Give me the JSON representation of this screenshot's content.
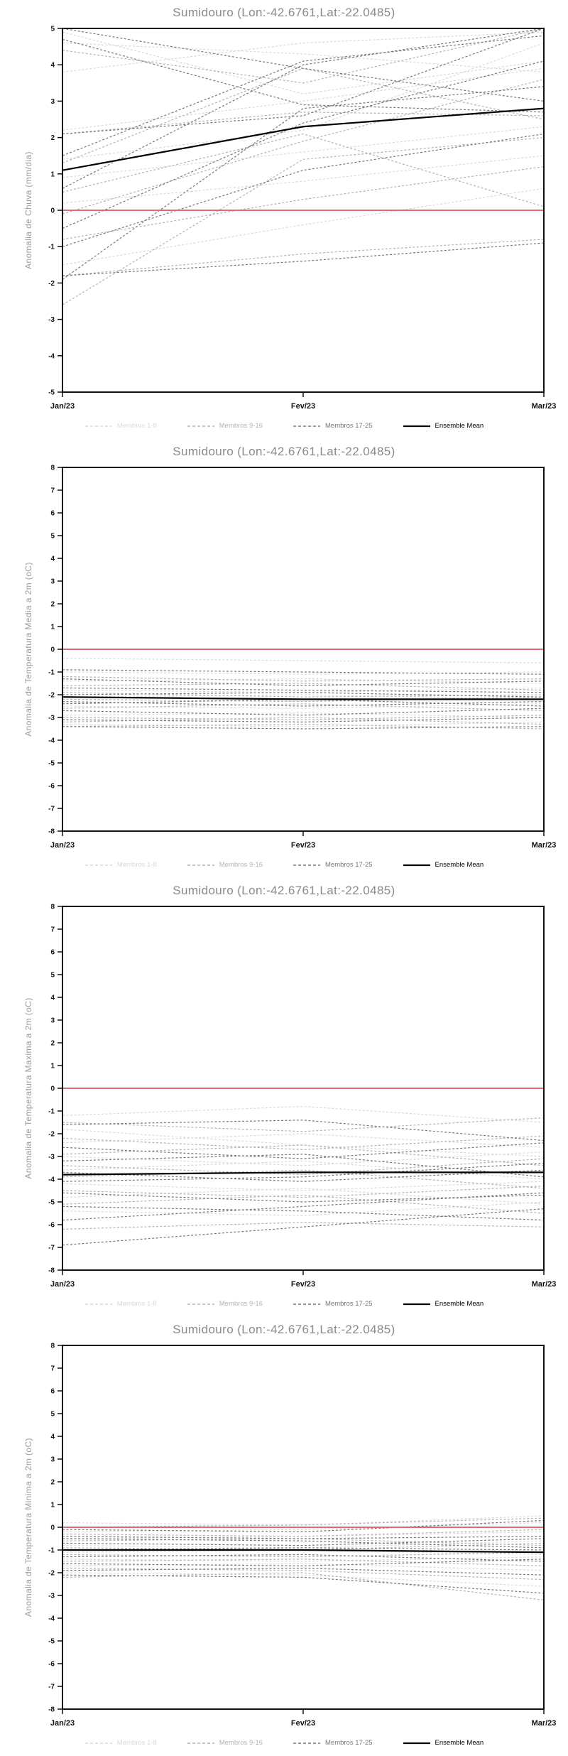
{
  "page": {
    "background": "#ffffff"
  },
  "chart_data": [
    {
      "type": "line",
      "title": "Sumidouro (Lon:-42.6761,Lat:-22.0485)",
      "ylabel": "Anomalia de Chuva (mm/dia)",
      "xlabel": "",
      "ylim": [
        -5,
        5
      ],
      "ytick_step": 1,
      "x": [
        "Jan/23",
        "Fev/23",
        "Mar/23"
      ],
      "grid": false,
      "legend_position": "bottom",
      "zero_line": {
        "y": 0,
        "color": "#e06a6a"
      },
      "legend": [
        {
          "label": "Membros 1-8",
          "color": "#d9d9d9",
          "style": "dashed"
        },
        {
          "label": "Membros 9-16",
          "color": "#b3b3b3",
          "style": "dashed"
        },
        {
          "label": "Membros 17-25",
          "color": "#777777",
          "style": "dashed"
        },
        {
          "label": "Ensemble Mean",
          "color": "#000000",
          "style": "solid"
        }
      ],
      "series": [
        {
          "group": 0,
          "values": [
            4.9,
            3.2,
            4.1
          ]
        },
        {
          "group": 0,
          "values": [
            4.6,
            4.3,
            3.8
          ]
        },
        {
          "group": 0,
          "values": [
            3.8,
            4.6,
            4.9
          ]
        },
        {
          "group": 0,
          "values": [
            2.2,
            3.0,
            3.9
          ]
        },
        {
          "group": 0,
          "values": [
            1.4,
            2.2,
            4.6
          ]
        },
        {
          "group": 0,
          "values": [
            0.9,
            1.6,
            2.3
          ]
        },
        {
          "group": 0,
          "values": [
            0.2,
            0.8,
            1.5
          ]
        },
        {
          "group": 0,
          "values": [
            -1.5,
            -0.4,
            0.6
          ]
        },
        {
          "group": 1,
          "values": [
            4.4,
            3.5,
            5.0
          ]
        },
        {
          "group": 1,
          "values": [
            2.1,
            2.7,
            2.6
          ]
        },
        {
          "group": 1,
          "values": [
            1.3,
            3.9,
            2.5
          ]
        },
        {
          "group": 1,
          "values": [
            0.5,
            2.1,
            0.1
          ]
        },
        {
          "group": 1,
          "values": [
            -0.1,
            1.9,
            3.6
          ]
        },
        {
          "group": 1,
          "values": [
            -0.8,
            0.3,
            1.2
          ]
        },
        {
          "group": 1,
          "values": [
            -1.8,
            -1.2,
            -0.8
          ]
        },
        {
          "group": 1,
          "values": [
            -2.6,
            1.4,
            2.0
          ]
        },
        {
          "group": 2,
          "values": [
            5.0,
            3.9,
            3.0
          ]
        },
        {
          "group": 2,
          "values": [
            4.7,
            2.9,
            2.7
          ]
        },
        {
          "group": 2,
          "values": [
            2.1,
            2.6,
            5.0
          ]
        },
        {
          "group": 2,
          "values": [
            1.5,
            4.1,
            4.8
          ]
        },
        {
          "group": 2,
          "values": [
            0.6,
            4.0,
            5.0
          ]
        },
        {
          "group": 2,
          "values": [
            -0.5,
            2.4,
            4.1
          ]
        },
        {
          "group": 2,
          "values": [
            -1.0,
            1.1,
            2.1
          ]
        },
        {
          "group": 2,
          "values": [
            -1.9,
            2.8,
            3.4
          ]
        },
        {
          "group": 2,
          "values": [
            -1.8,
            -1.4,
            -0.9
          ]
        },
        {
          "group": 3,
          "values": [
            1.1,
            2.3,
            2.8
          ]
        }
      ]
    },
    {
      "type": "line",
      "title": "Sumidouro (Lon:-42.6761,Lat:-22.0485)",
      "ylabel": "Anomalia de Temperatura Media a 2m (oC)",
      "xlabel": "",
      "ylim": [
        -8,
        8
      ],
      "ytick_step": 1,
      "x": [
        "Jan/23",
        "Fev/23",
        "Mar/23"
      ],
      "grid": false,
      "legend_position": "bottom",
      "zero_line": {
        "y": 0,
        "color": "#e06a6a"
      },
      "legend": [
        {
          "label": "Membros 1-8",
          "color": "#d9d9d9",
          "style": "dashed"
        },
        {
          "label": "Membros 9-16",
          "color": "#b3b3b3",
          "style": "dashed"
        },
        {
          "label": "Membros 17-25",
          "color": "#777777",
          "style": "dashed"
        },
        {
          "label": "Ensemble Mean",
          "color": "#000000",
          "style": "solid"
        }
      ],
      "series": [
        {
          "group": 0,
          "values": [
            -0.4,
            -0.5,
            -0.6
          ]
        },
        {
          "group": 0,
          "values": [
            -1.0,
            -1.1,
            -1.0
          ]
        },
        {
          "group": 0,
          "values": [
            -1.4,
            -1.3,
            -1.5
          ]
        },
        {
          "group": 0,
          "values": [
            -1.8,
            -1.9,
            -1.7
          ]
        },
        {
          "group": 0,
          "values": [
            -2.1,
            -2.0,
            -2.2
          ]
        },
        {
          "group": 0,
          "values": [
            -2.5,
            -2.6,
            -2.4
          ]
        },
        {
          "group": 0,
          "values": [
            -2.9,
            -2.8,
            -3.0
          ]
        },
        {
          "group": 0,
          "values": [
            -3.3,
            -3.4,
            -3.2
          ]
        },
        {
          "group": 1,
          "values": [
            -1.2,
            -1.4,
            -1.3
          ]
        },
        {
          "group": 1,
          "values": [
            -1.6,
            -1.5,
            -1.8
          ]
        },
        {
          "group": 1,
          "values": [
            -1.9,
            -2.1,
            -2.0
          ]
        },
        {
          "group": 1,
          "values": [
            -2.2,
            -2.3,
            -2.1
          ]
        },
        {
          "group": 1,
          "values": [
            -2.6,
            -2.4,
            -2.7
          ]
        },
        {
          "group": 1,
          "values": [
            -3.0,
            -3.1,
            -2.9
          ]
        },
        {
          "group": 1,
          "values": [
            -3.2,
            -3.0,
            -3.3
          ]
        },
        {
          "group": 1,
          "values": [
            -3.4,
            -3.3,
            -3.5
          ]
        },
        {
          "group": 2,
          "values": [
            -0.9,
            -1.0,
            -1.1
          ]
        },
        {
          "group": 2,
          "values": [
            -1.3,
            -1.6,
            -1.4
          ]
        },
        {
          "group": 2,
          "values": [
            -1.7,
            -1.8,
            -1.9
          ]
        },
        {
          "group": 2,
          "values": [
            -2.0,
            -1.9,
            -2.1
          ]
        },
        {
          "group": 2,
          "values": [
            -2.3,
            -2.5,
            -2.3
          ]
        },
        {
          "group": 2,
          "values": [
            -2.7,
            -2.9,
            -2.6
          ]
        },
        {
          "group": 2,
          "values": [
            -3.1,
            -3.2,
            -3.0
          ]
        },
        {
          "group": 2,
          "values": [
            -3.4,
            -3.5,
            -3.4
          ]
        },
        {
          "group": 2,
          "values": [
            -2.4,
            -2.2,
            -2.5
          ]
        },
        {
          "group": 3,
          "values": [
            -2.1,
            -2.2,
            -2.2
          ]
        }
      ]
    },
    {
      "type": "line",
      "title": "Sumidouro (Lon:-42.6761,Lat:-22.0485)",
      "ylabel": "Anomalia de Temperatura Maxima a 2m (oC)",
      "xlabel": "",
      "ylim": [
        -8,
        8
      ],
      "ytick_step": 1,
      "x": [
        "Jan/23",
        "Fev/23",
        "Mar/23"
      ],
      "grid": false,
      "legend_position": "bottom",
      "zero_line": {
        "y": 0,
        "color": "#e06a6a"
      },
      "legend": [
        {
          "label": "Membros 1-8",
          "color": "#d9d9d9",
          "style": "dashed"
        },
        {
          "label": "Membros 9-16",
          "color": "#b3b3b3",
          "style": "dashed"
        },
        {
          "label": "Membros 17-25",
          "color": "#777777",
          "style": "dashed"
        },
        {
          "label": "Ensemble Mean",
          "color": "#000000",
          "style": "solid"
        }
      ],
      "series": [
        {
          "group": 0,
          "values": [
            -1.2,
            -0.8,
            -1.5
          ]
        },
        {
          "group": 0,
          "values": [
            -1.8,
            -2.5,
            -3.0
          ]
        },
        {
          "group": 0,
          "values": [
            -2.4,
            -2.0,
            -2.6
          ]
        },
        {
          "group": 0,
          "values": [
            -3.0,
            -3.4,
            -2.8
          ]
        },
        {
          "group": 0,
          "values": [
            -3.6,
            -3.2,
            -4.0
          ]
        },
        {
          "group": 0,
          "values": [
            -4.2,
            -4.5,
            -4.1
          ]
        },
        {
          "group": 0,
          "values": [
            -4.8,
            -4.4,
            -5.1
          ]
        },
        {
          "group": 0,
          "values": [
            -5.4,
            -5.6,
            -5.0
          ]
        },
        {
          "group": 1,
          "values": [
            -1.5,
            -1.9,
            -1.3
          ]
        },
        {
          "group": 1,
          "values": [
            -2.2,
            -2.7,
            -2.1
          ]
        },
        {
          "group": 1,
          "values": [
            -2.9,
            -2.5,
            -3.4
          ]
        },
        {
          "group": 1,
          "values": [
            -3.4,
            -3.8,
            -3.1
          ]
        },
        {
          "group": 1,
          "values": [
            -3.9,
            -3.6,
            -4.4
          ]
        },
        {
          "group": 1,
          "values": [
            -4.5,
            -4.8,
            -4.3
          ]
        },
        {
          "group": 1,
          "values": [
            -5.1,
            -4.7,
            -5.5
          ]
        },
        {
          "group": 1,
          "values": [
            -6.2,
            -5.9,
            -6.1
          ]
        },
        {
          "group": 2,
          "values": [
            -1.6,
            -1.4,
            -2.3
          ]
        },
        {
          "group": 2,
          "values": [
            -2.6,
            -3.1,
            -2.4
          ]
        },
        {
          "group": 2,
          "values": [
            -3.2,
            -2.9,
            -3.9
          ]
        },
        {
          "group": 2,
          "values": [
            -3.7,
            -4.1,
            -3.6
          ]
        },
        {
          "group": 2,
          "values": [
            -4.1,
            -3.9,
            -3.3
          ]
        },
        {
          "group": 2,
          "values": [
            -4.6,
            -5.0,
            -4.7
          ]
        },
        {
          "group": 2,
          "values": [
            -5.2,
            -5.4,
            -5.8
          ]
        },
        {
          "group": 2,
          "values": [
            -5.8,
            -5.2,
            -4.6
          ]
        },
        {
          "group": 2,
          "values": [
            -6.9,
            -6.1,
            -5.3
          ]
        },
        {
          "group": 3,
          "values": [
            -3.8,
            -3.7,
            -3.7
          ]
        }
      ]
    },
    {
      "type": "line",
      "title": "Sumidouro (Lon:-42.6761,Lat:-22.0485)",
      "ylabel": "Anomalia de Temperatura Minima a 2m (oC)",
      "xlabel": "",
      "ylim": [
        -8,
        8
      ],
      "ytick_step": 1,
      "x": [
        "Jan/23",
        "Fev/23",
        "Mar/23"
      ],
      "grid": false,
      "legend_position": "bottom",
      "zero_line": {
        "y": 0,
        "color": "#e06a6a"
      },
      "legend": [
        {
          "label": "Membros 1-8",
          "color": "#d9d9d9",
          "style": "dashed"
        },
        {
          "label": "Membros 9-16",
          "color": "#b3b3b3",
          "style": "dashed"
        },
        {
          "label": "Membros 17-25",
          "color": "#777777",
          "style": "dashed"
        },
        {
          "label": "Ensemble Mean",
          "color": "#000000",
          "style": "solid"
        }
      ],
      "series": [
        {
          "group": 0,
          "values": [
            0.2,
            0.1,
            0.5
          ]
        },
        {
          "group": 0,
          "values": [
            -0.2,
            -0.1,
            0.2
          ]
        },
        {
          "group": 0,
          "values": [
            -0.5,
            -0.4,
            -0.2
          ]
        },
        {
          "group": 0,
          "values": [
            -0.8,
            -0.9,
            -0.6
          ]
        },
        {
          "group": 0,
          "values": [
            -1.1,
            -1.0,
            -1.2
          ]
        },
        {
          "group": 0,
          "values": [
            -1.4,
            -1.5,
            -1.3
          ]
        },
        {
          "group": 0,
          "values": [
            -1.7,
            -1.6,
            -1.9
          ]
        },
        {
          "group": 0,
          "values": [
            -2.0,
            -2.1,
            -2.6
          ]
        },
        {
          "group": 1,
          "values": [
            0.0,
            0.1,
            0.4
          ]
        },
        {
          "group": 1,
          "values": [
            -0.3,
            -0.4,
            -0.1
          ]
        },
        {
          "group": 1,
          "values": [
            -0.6,
            -0.5,
            -0.8
          ]
        },
        {
          "group": 1,
          "values": [
            -0.9,
            -1.0,
            -0.7
          ]
        },
        {
          "group": 1,
          "values": [
            -1.2,
            -1.3,
            -1.1
          ]
        },
        {
          "group": 1,
          "values": [
            -1.5,
            -1.4,
            -1.7
          ]
        },
        {
          "group": 1,
          "values": [
            -1.8,
            -1.9,
            -2.3
          ]
        },
        {
          "group": 1,
          "values": [
            -2.2,
            -2.0,
            -3.2
          ]
        },
        {
          "group": 2,
          "values": [
            -0.1,
            -0.2,
            0.3
          ]
        },
        {
          "group": 2,
          "values": [
            -0.4,
            -0.5,
            -0.4
          ]
        },
        {
          "group": 2,
          "values": [
            -0.7,
            -0.8,
            -0.5
          ]
        },
        {
          "group": 2,
          "values": [
            -1.0,
            -0.9,
            -1.0
          ]
        },
        {
          "group": 2,
          "values": [
            -1.3,
            -1.2,
            -1.5
          ]
        },
        {
          "group": 2,
          "values": [
            -1.6,
            -1.7,
            -1.4
          ]
        },
        {
          "group": 2,
          "values": [
            -1.9,
            -1.8,
            -2.1
          ]
        },
        {
          "group": 2,
          "values": [
            -2.1,
            -2.2,
            -2.9
          ]
        },
        {
          "group": 2,
          "values": [
            -0.5,
            -0.6,
            -0.9
          ]
        },
        {
          "group": 3,
          "values": [
            -1.0,
            -1.0,
            -1.1
          ]
        }
      ]
    }
  ]
}
